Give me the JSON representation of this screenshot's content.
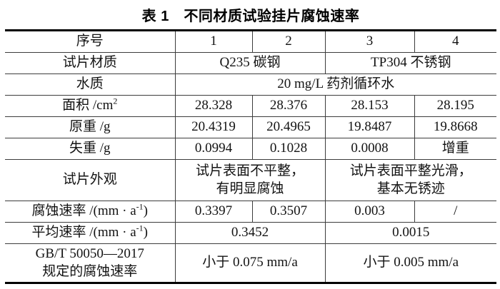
{
  "title": "表 1　不同材质试验挂片腐蚀速率",
  "colors": {
    "background": "#ffffff",
    "text": "#131313",
    "rule": "#3c3c3c",
    "heavy_rule": "#000000"
  },
  "table": {
    "columns_note": "label column + sample columns 1-4",
    "rows": [
      {
        "label": [
          {
            "t": "序号"
          }
        ],
        "cells": [
          {
            "span": 1,
            "parts": [
              {
                "t": "1"
              }
            ]
          },
          {
            "span": 1,
            "parts": [
              {
                "t": "2"
              }
            ]
          },
          {
            "span": 1,
            "parts": [
              {
                "t": "3"
              }
            ]
          },
          {
            "span": 1,
            "parts": [
              {
                "t": "4"
              }
            ]
          }
        ]
      },
      {
        "label": [
          {
            "t": "试片材质"
          }
        ],
        "cells": [
          {
            "span": 2,
            "parts": [
              {
                "t": "Q235 碳钢"
              }
            ]
          },
          {
            "span": 2,
            "parts": [
              {
                "t": "TP304 不锈钢"
              }
            ]
          }
        ]
      },
      {
        "label": [
          {
            "t": "水质"
          }
        ],
        "cells": [
          {
            "span": 4,
            "parts": [
              {
                "t": "20 mg/L 药剂循环水"
              }
            ]
          }
        ]
      },
      {
        "label": [
          {
            "t": "面积 /cm"
          },
          {
            "t": "2",
            "sup": true
          }
        ],
        "cells": [
          {
            "span": 1,
            "parts": [
              {
                "t": "28.328"
              }
            ]
          },
          {
            "span": 1,
            "parts": [
              {
                "t": "28.376"
              }
            ]
          },
          {
            "span": 1,
            "parts": [
              {
                "t": "28.153"
              }
            ]
          },
          {
            "span": 1,
            "large": true,
            "parts": [
              {
                "t": "28.195"
              }
            ]
          }
        ]
      },
      {
        "label": [
          {
            "t": "原重 /g"
          }
        ],
        "cells": [
          {
            "span": 1,
            "parts": [
              {
                "t": "20.4319"
              }
            ]
          },
          {
            "span": 1,
            "parts": [
              {
                "t": "20.4965"
              }
            ]
          },
          {
            "span": 1,
            "parts": [
              {
                "t": "19.8487"
              }
            ]
          },
          {
            "span": 1,
            "parts": [
              {
                "t": "19.8668"
              }
            ]
          }
        ]
      },
      {
        "label": [
          {
            "t": "失重 /g"
          }
        ],
        "cells": [
          {
            "span": 1,
            "parts": [
              {
                "t": "0.0994"
              }
            ]
          },
          {
            "span": 1,
            "parts": [
              {
                "t": "0.1028"
              }
            ]
          },
          {
            "span": 1,
            "parts": [
              {
                "t": "0.0008"
              }
            ]
          },
          {
            "span": 1,
            "parts": [
              {
                "t": "增重"
              }
            ]
          }
        ]
      },
      {
        "label": [
          {
            "t": "试片外观"
          }
        ],
        "height": "tall",
        "cells": [
          {
            "span": 2,
            "parts": [
              {
                "t": "试片表面不平整，"
              },
              {
                "br": true
              },
              {
                "t": "有明显腐蚀"
              }
            ]
          },
          {
            "span": 2,
            "parts": [
              {
                "t": "试片表面平整光滑，"
              },
              {
                "br": true
              },
              {
                "t": "基本无锈迹"
              }
            ]
          }
        ]
      },
      {
        "label": [
          {
            "t": "腐蚀速率 /(mm · a"
          },
          {
            "t": "-1",
            "sup": true
          },
          {
            "t": ")"
          }
        ],
        "cells": [
          {
            "span": 1,
            "parts": [
              {
                "t": "0.3397"
              }
            ]
          },
          {
            "span": 1,
            "parts": [
              {
                "t": "0.3507"
              }
            ]
          },
          {
            "span": 1,
            "large": true,
            "parts": [
              {
                "t": "0.003"
              }
            ]
          },
          {
            "span": 1,
            "parts": [
              {
                "t": "/"
              }
            ]
          }
        ]
      },
      {
        "label": [
          {
            "t": "平均速率 /(mm · a"
          },
          {
            "t": "-1",
            "sup": true
          },
          {
            "t": ")"
          }
        ],
        "cells": [
          {
            "span": 2,
            "parts": [
              {
                "t": "0.3452"
              }
            ]
          },
          {
            "span": 2,
            "parts": [
              {
                "t": "0.0015"
              }
            ]
          }
        ]
      },
      {
        "label": [
          {
            "t": "GB/T 50050—2017"
          },
          {
            "br": true
          },
          {
            "t": "规定的腐蚀速率"
          }
        ],
        "height": "tall2",
        "cells": [
          {
            "span": 2,
            "parts": [
              {
                "t": "小于 0.075 mm/a"
              }
            ]
          },
          {
            "span": 2,
            "parts": [
              {
                "t": "小于 0.005 mm/a"
              }
            ]
          }
        ]
      }
    ]
  }
}
